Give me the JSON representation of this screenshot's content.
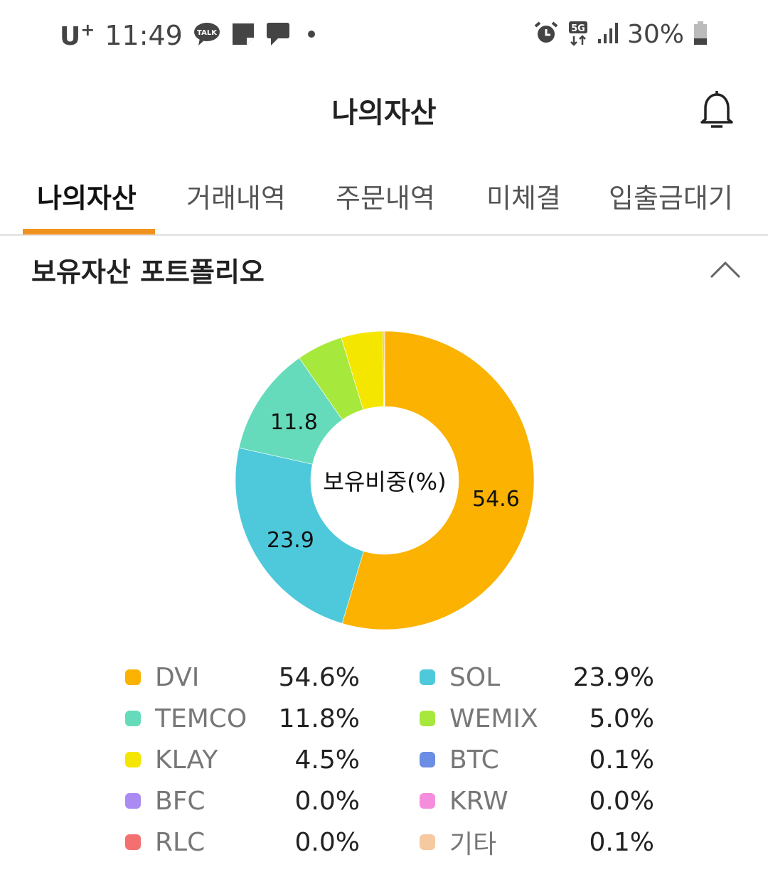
{
  "status_bar": {
    "carrier": "U",
    "carrier_sup": "+",
    "time": "11:49",
    "notification_icons": [
      "kakaotalk-icon",
      "note-icon",
      "message-icon",
      "dot-icon"
    ],
    "talk_label": "TALK",
    "network": "5G",
    "battery": "30%"
  },
  "header": {
    "title": "나의자산"
  },
  "tabs": [
    {
      "label": "나의자산",
      "active": true
    },
    {
      "label": "거래내역",
      "active": false
    },
    {
      "label": "주문내역",
      "active": false
    },
    {
      "label": "미체결",
      "active": false
    },
    {
      "label": "입출금대기",
      "active": false
    }
  ],
  "section": {
    "title": "보유자산 포트폴리오"
  },
  "chart_center_label": "보유비중(%)",
  "chart_data": {
    "type": "pie",
    "title": "보유비중(%)",
    "categories": [
      "DVI",
      "SOL",
      "TEMCO",
      "WEMIX",
      "KLAY",
      "BTC",
      "BFC",
      "KRW",
      "RLC",
      "기타"
    ],
    "values": [
      54.6,
      23.9,
      11.8,
      5.0,
      4.5,
      0.1,
      0.0,
      0.0,
      0.0,
      0.1
    ],
    "colors": [
      "#fbb200",
      "#4ec9db",
      "#66dbbb",
      "#a6e83c",
      "#f5e600",
      "#6b8de3",
      "#a98bf3",
      "#f68ddc",
      "#f47070",
      "#f6c9a0"
    ],
    "slice_labels": [
      "54.6",
      "23.9",
      "11.8"
    ],
    "donut": true
  },
  "legend": [
    {
      "name": "DVI",
      "value": "54.6%",
      "color": "#fbb200"
    },
    {
      "name": "SOL",
      "value": "23.9%",
      "color": "#4ec9db"
    },
    {
      "name": "TEMCO",
      "value": "11.8%",
      "color": "#66dbbb"
    },
    {
      "name": "WEMIX",
      "value": "5.0%",
      "color": "#a6e83c"
    },
    {
      "name": "KLAY",
      "value": "4.5%",
      "color": "#f5e600"
    },
    {
      "name": "BTC",
      "value": "0.1%",
      "color": "#6b8de3"
    },
    {
      "name": "BFC",
      "value": "0.0%",
      "color": "#a98bf3"
    },
    {
      "name": "KRW",
      "value": "0.0%",
      "color": "#f68ddc"
    },
    {
      "name": "RLC",
      "value": "0.0%",
      "color": "#f47070"
    },
    {
      "name": "기타",
      "value": "0.1%",
      "color": "#f6c9a0"
    }
  ]
}
